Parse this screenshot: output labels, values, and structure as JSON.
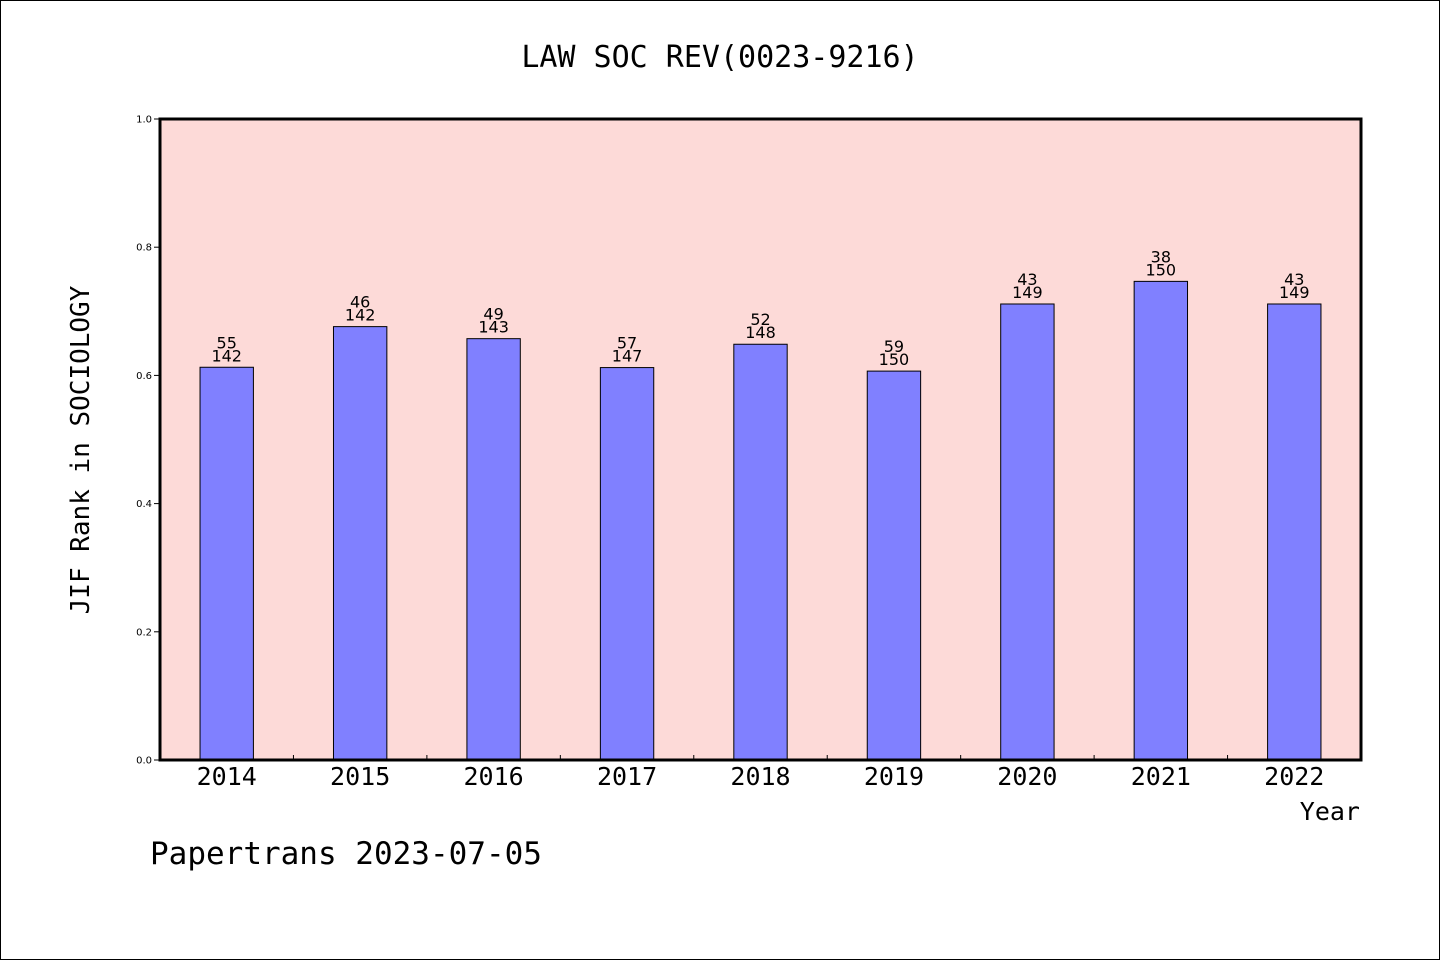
{
  "chart_data": {
    "type": "bar",
    "title": "LAW SOC REV(0023-9216)",
    "xlabel": "Year",
    "ylabel": "JIF Rank in SOCIOLOGY",
    "ylim": [
      0,
      1.0
    ],
    "yticks": [
      "0.0",
      "0.2",
      "0.4",
      "0.6",
      "0.8",
      "1.0"
    ],
    "ytick_values": [
      0,
      0.2,
      0.4,
      0.6,
      0.8,
      1.0
    ],
    "categories": [
      "2014",
      "2015",
      "2016",
      "2017",
      "2018",
      "2019",
      "2020",
      "2021",
      "2022"
    ],
    "values": [
      0.6127,
      0.6761,
      0.6573,
      0.6122,
      0.6486,
      0.6067,
      0.7114,
      0.7467,
      0.7114
    ],
    "rank_labels": [
      "55",
      "46",
      "49",
      "57",
      "52",
      "59",
      "43",
      "38",
      "43"
    ],
    "total_labels": [
      "142",
      "142",
      "143",
      "147",
      "148",
      "150",
      "149",
      "150",
      "149"
    ],
    "grid": false,
    "legend": "none",
    "colors": {
      "plot_background": "#fddad8",
      "bar_fill": "#8080ff",
      "bar_stroke": "#000000"
    }
  },
  "footer": "Papertrans 2023-07-05"
}
